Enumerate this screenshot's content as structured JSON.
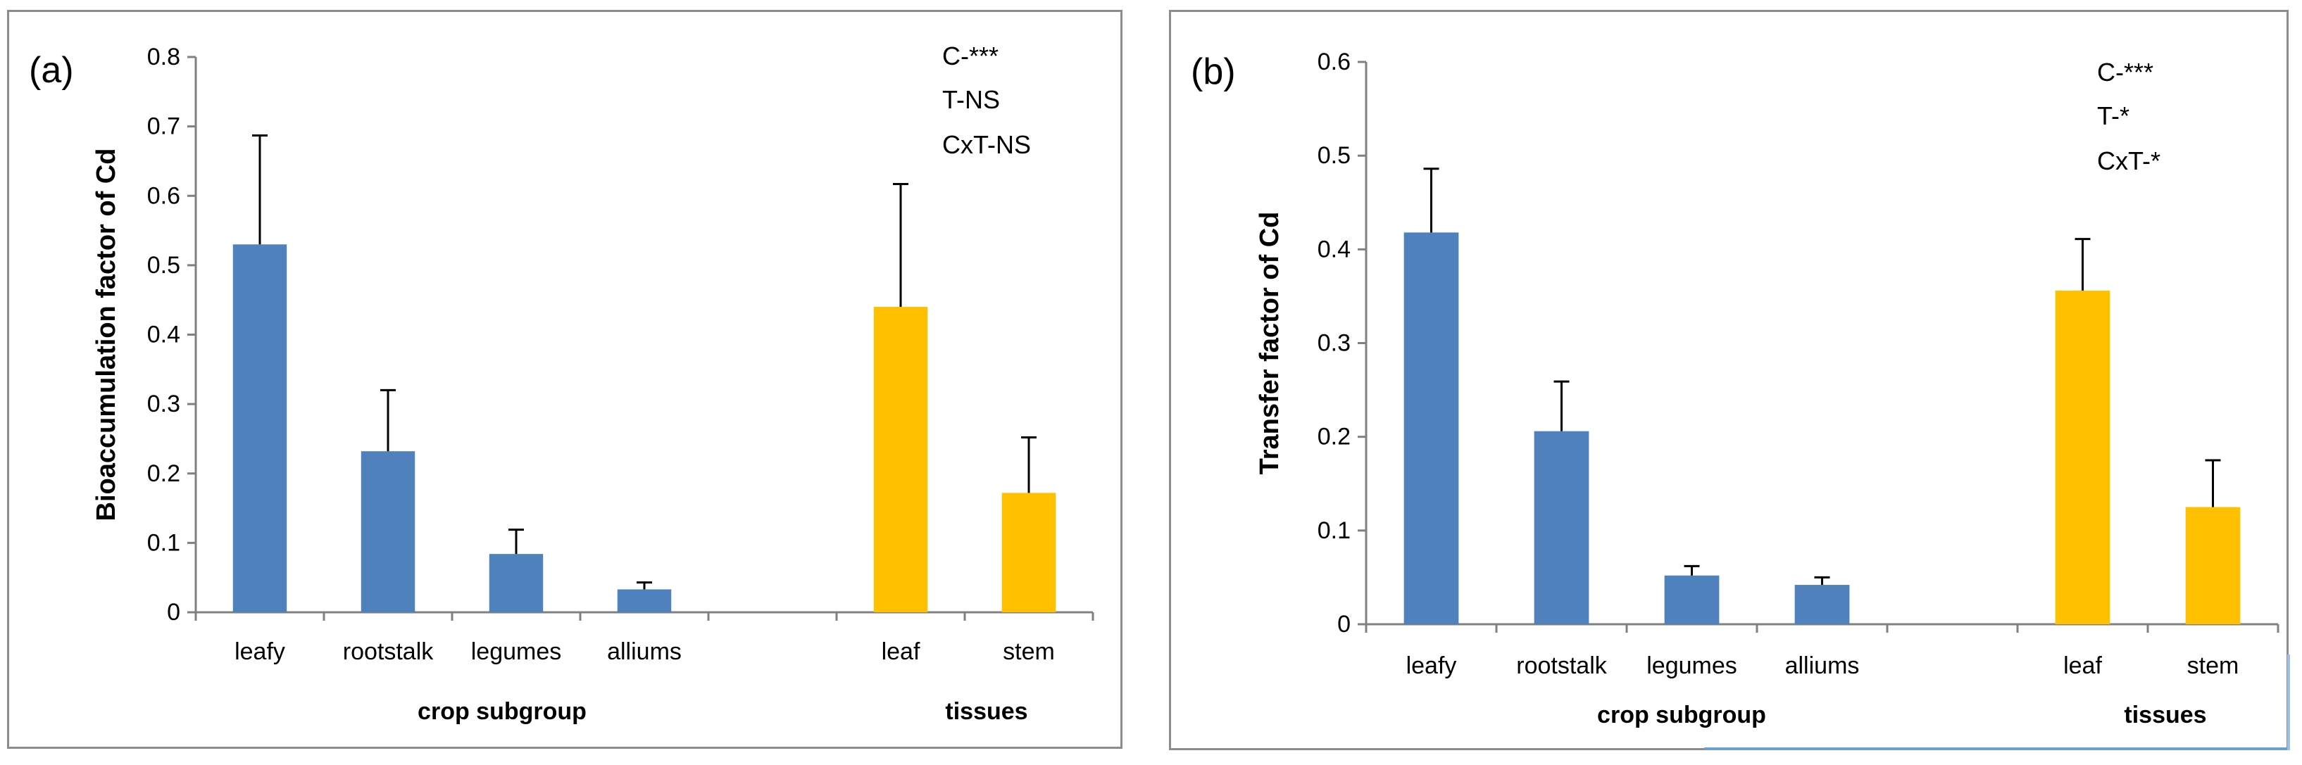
{
  "chart_data": [
    {
      "type": "bar",
      "panel_label": "(a)",
      "ylabel": "Bioaccumulation factor of Cd",
      "ylim": [
        0,
        0.8
      ],
      "yticks": [
        "0",
        "0.1",
        "0.2",
        "0.3",
        "0.4",
        "0.5",
        "0.6",
        "0.7",
        "0.8"
      ],
      "categories": [
        "leafy",
        "rootstalk",
        "legumes",
        "alliums",
        "",
        "leaf",
        "stem"
      ],
      "values": [
        0.53,
        0.232,
        0.084,
        0.033,
        null,
        0.44,
        0.172
      ],
      "errors": [
        0.157,
        0.088,
        0.035,
        0.01,
        null,
        0.177,
        0.08
      ],
      "group_labels": [
        "crop subgroup",
        "tissues"
      ],
      "annotations": [
        "C-***",
        "T-NS",
        "CxT-NS"
      ]
    },
    {
      "type": "bar",
      "panel_label": "(b)",
      "ylabel": "Transfer factor of Cd",
      "ylim": [
        0,
        0.6
      ],
      "yticks": [
        "0",
        "0.1",
        "0.2",
        "0.3",
        "0.4",
        "0.5",
        "0.6"
      ],
      "categories": [
        "leafy",
        "rootstalk",
        "legumes",
        "alliums",
        "",
        "leaf",
        "stem"
      ],
      "values": [
        0.418,
        0.206,
        0.052,
        0.042,
        null,
        0.356,
        0.125
      ],
      "errors": [
        0.068,
        0.053,
        0.01,
        0.008,
        null,
        0.055,
        0.05
      ],
      "group_labels": [
        "crop subgroup",
        "tissues"
      ],
      "annotations": [
        "C-***",
        "T-*",
        "CxT-*"
      ]
    }
  ],
  "colors": {
    "crop": "#4f81bd",
    "tissue": "#ffc000",
    "axis": "#808080",
    "error": "#000000",
    "text": "#000000"
  }
}
